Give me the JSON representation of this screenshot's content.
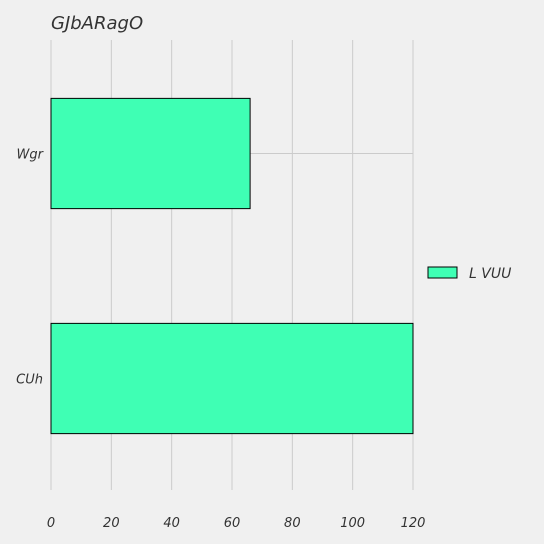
{
  "chart_data": {
    "type": "bar",
    "orientation": "horizontal",
    "title": "GJbARagO",
    "xlabel": "",
    "ylabel": "",
    "categories": [
      "Wgr",
      "CUh"
    ],
    "series": [
      {
        "name": "L VUU",
        "values": [
          66,
          120
        ],
        "color": "#3fffb4"
      }
    ],
    "xlim": [
      0,
      120
    ],
    "xticks": [
      "0",
      "20",
      "40",
      "60",
      "80",
      "100",
      "120"
    ],
    "grid": true,
    "legend": "right"
  }
}
